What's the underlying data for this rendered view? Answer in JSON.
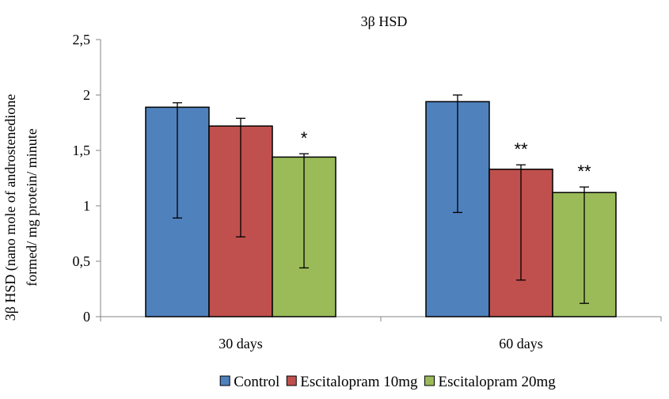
{
  "chart_data": {
    "type": "bar",
    "title": "3β HSD",
    "ylabel_lines": [
      "3β HSD (nano mole of androstenedione",
      "formed/ mg protein/ minute"
    ],
    "xlabel": "",
    "categories": [
      "30 days",
      "60 days"
    ],
    "series": [
      {
        "name": "Control",
        "color": "#4f81bd",
        "values": [
          1.89,
          1.94
        ],
        "err_high": [
          1.93,
          2.0
        ],
        "err_low": [
          0.89,
          0.94
        ],
        "annotations": [
          "",
          ""
        ]
      },
      {
        "name": "Escitalopram 10mg",
        "color": "#c0504d",
        "values": [
          1.72,
          1.33
        ],
        "err_high": [
          1.79,
          1.37
        ],
        "err_low": [
          0.72,
          0.33
        ],
        "annotations": [
          "",
          "**"
        ]
      },
      {
        "name": "Escitalopram 20mg",
        "color": "#9bbb59",
        "values": [
          1.44,
          1.12
        ],
        "err_high": [
          1.47,
          1.17
        ],
        "err_low": [
          0.44,
          0.12
        ],
        "annotations": [
          "*",
          "**"
        ]
      }
    ],
    "ylim": [
      0,
      2.5
    ],
    "yticks": [
      0,
      0.5,
      1,
      1.5,
      2,
      2.5
    ],
    "ytick_labels": [
      "0",
      "0,5",
      "1",
      "1,5",
      "2",
      "2,5"
    ],
    "grid": false,
    "legend_position": "bottom"
  }
}
